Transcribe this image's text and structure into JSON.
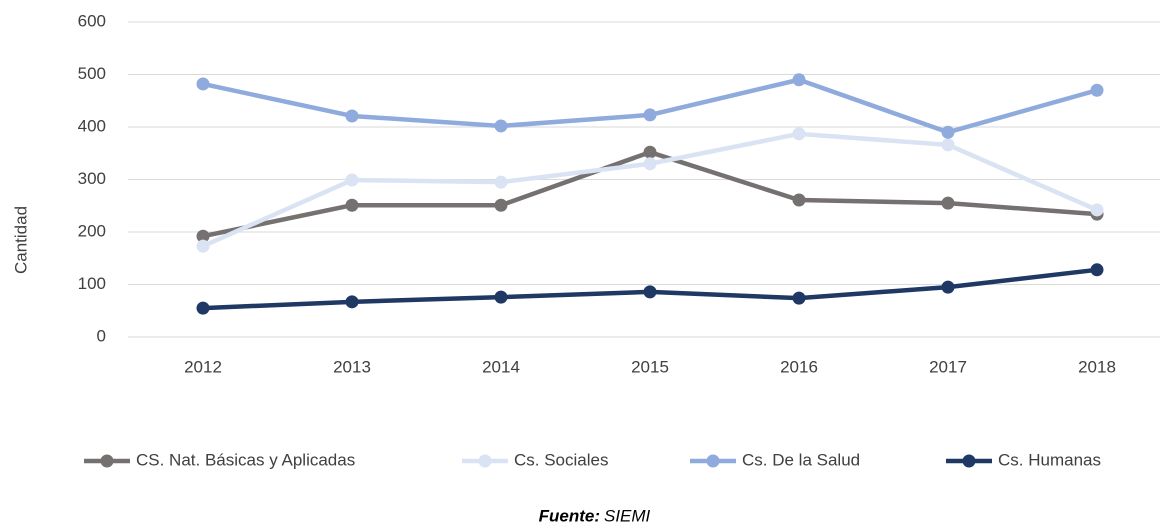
{
  "chart_data": {
    "type": "line",
    "y_label": "Cantidad",
    "categories": [
      "2012",
      "2013",
      "2014",
      "2015",
      "2016",
      "2017",
      "2018"
    ],
    "series": [
      {
        "name": "CS. Nat. Básicas y Aplicadas",
        "color": "#767171",
        "values": [
          192,
          251,
          251,
          352,
          261,
          255,
          234
        ]
      },
      {
        "name": "Cs. Sociales",
        "color": "#dae3f3",
        "values": [
          173,
          299,
          295,
          330,
          387,
          366,
          242
        ]
      },
      {
        "name": "Cs. De la Salud",
        "color": "#8faadc",
        "values": [
          482,
          421,
          402,
          423,
          490,
          390,
          470
        ]
      },
      {
        "name": "Cs. Humanas",
        "color": "#203864",
        "values": [
          55,
          67,
          76,
          86,
          74,
          95,
          128
        ]
      }
    ],
    "ylim": [
      0,
      600
    ],
    "yticks": [
      0,
      100,
      200,
      300,
      400,
      500,
      600
    ],
    "grid": true,
    "legend": "bottom",
    "source_label": "Fuente:",
    "source": "SIEMI"
  }
}
